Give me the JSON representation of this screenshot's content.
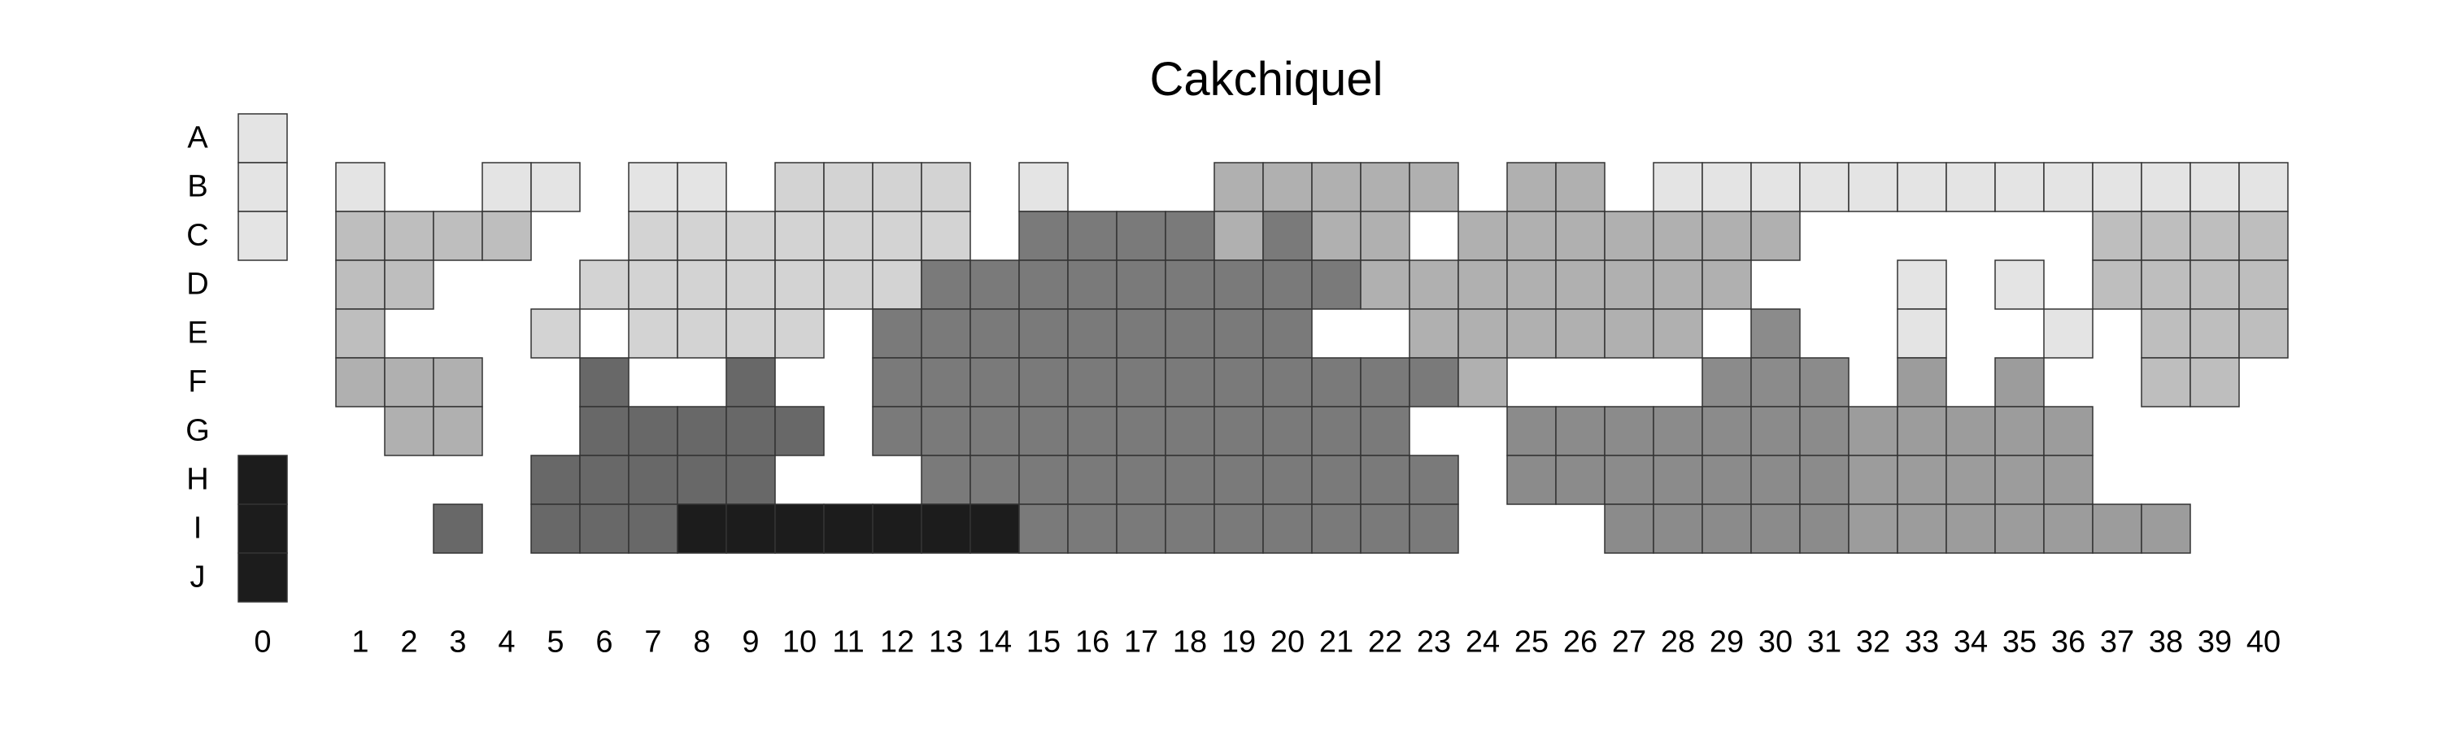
{
  "chart_data": {
    "type": "heatmap",
    "title": "Cakchiquel",
    "rows": [
      "A",
      "B",
      "C",
      "D",
      "E",
      "F",
      "G",
      "H",
      "I",
      "J"
    ],
    "columns": [
      "0",
      "1",
      "2",
      "3",
      "4",
      "5",
      "6",
      "7",
      "8",
      "9",
      "10",
      "11",
      "12",
      "13",
      "14",
      "15",
      "16",
      "17",
      "18",
      "19",
      "20",
      "21",
      "22",
      "23",
      "24",
      "25",
      "26",
      "27",
      "28",
      "29",
      "30",
      "31",
      "32",
      "33",
      "34",
      "35",
      "36",
      "37",
      "38",
      "39",
      "40"
    ],
    "color_scale": "white (low) to black (high), cell value in 0-9",
    "empty_value": 0,
    "grid": [
      [
        1,
        0,
        0,
        0,
        0,
        0,
        0,
        0,
        0,
        0,
        0,
        0,
        0,
        0,
        0,
        0,
        0,
        0,
        0,
        0,
        0,
        0,
        0,
        0,
        0,
        0,
        0,
        0,
        0,
        0,
        0,
        0,
        0,
        0,
        0,
        0,
        0,
        0,
        0,
        0,
        0
      ],
      [
        1,
        1,
        0,
        0,
        1,
        1,
        0,
        1,
        1,
        0,
        2,
        2,
        2,
        2,
        0,
        1,
        0,
        0,
        0,
        4,
        4,
        4,
        4,
        4,
        0,
        4,
        4,
        0,
        1,
        1,
        1,
        1,
        1,
        1,
        1,
        1,
        1,
        1,
        1,
        1,
        1
      ],
      [
        1,
        3,
        3,
        3,
        3,
        0,
        0,
        2,
        2,
        2,
        2,
        2,
        2,
        2,
        0,
        7,
        7,
        7,
        7,
        4,
        7,
        4,
        4,
        0,
        4,
        4,
        4,
        4,
        4,
        4,
        4,
        0,
        0,
        0,
        0,
        0,
        0,
        3,
        3,
        3,
        3
      ],
      [
        0,
        3,
        3,
        0,
        0,
        0,
        2,
        2,
        2,
        2,
        2,
        2,
        2,
        7,
        7,
        7,
        7,
        7,
        7,
        7,
        7,
        7,
        4,
        4,
        4,
        4,
        4,
        4,
        4,
        4,
        0,
        0,
        0,
        1,
        0,
        1,
        0,
        3,
        3,
        3,
        3
      ],
      [
        0,
        3,
        0,
        0,
        0,
        2,
        0,
        2,
        2,
        2,
        2,
        0,
        7,
        7,
        7,
        7,
        7,
        7,
        7,
        7,
        7,
        0,
        0,
        4,
        4,
        4,
        4,
        4,
        4,
        0,
        6,
        0,
        0,
        1,
        0,
        0,
        1,
        0,
        3,
        3,
        3
      ],
      [
        0,
        4,
        4,
        4,
        0,
        0,
        8,
        0,
        0,
        8,
        0,
        0,
        7,
        7,
        7,
        7,
        7,
        7,
        7,
        7,
        7,
        7,
        7,
        7,
        4,
        0,
        0,
        0,
        0,
        6,
        6,
        6,
        0,
        5,
        0,
        5,
        0,
        0,
        3,
        3,
        0
      ],
      [
        0,
        0,
        4,
        4,
        0,
        0,
        8,
        8,
        8,
        8,
        8,
        0,
        7,
        7,
        7,
        7,
        7,
        7,
        7,
        7,
        7,
        7,
        7,
        0,
        0,
        6,
        6,
        6,
        6,
        6,
        6,
        6,
        5,
        5,
        5,
        5,
        5,
        0,
        0,
        0,
        0
      ],
      [
        9,
        0,
        0,
        0,
        0,
        8,
        8,
        8,
        8,
        8,
        0,
        0,
        0,
        7,
        7,
        7,
        7,
        7,
        7,
        7,
        7,
        7,
        7,
        7,
        0,
        6,
        6,
        6,
        6,
        6,
        6,
        6,
        5,
        5,
        5,
        5,
        5,
        0,
        0,
        0,
        0
      ],
      [
        9,
        0,
        0,
        8,
        0,
        8,
        8,
        8,
        9,
        9,
        9,
        9,
        9,
        9,
        9,
        7,
        7,
        7,
        7,
        7,
        7,
        7,
        7,
        7,
        0,
        0,
        0,
        6,
        6,
        6,
        6,
        6,
        5,
        5,
        5,
        5,
        5,
        5,
        5,
        0,
        0
      ],
      [
        9,
        0,
        0,
        0,
        0,
        0,
        0,
        0,
        0,
        0,
        0,
        0,
        0,
        0,
        0,
        0,
        0,
        0,
        0,
        0,
        0,
        0,
        0,
        0,
        0,
        0,
        0,
        0,
        0,
        0,
        0,
        0,
        0,
        0,
        0,
        0,
        0,
        0,
        0,
        0,
        0
      ]
    ],
    "colors": {
      "1": "#e4e4e4",
      "2": "#d3d3d3",
      "3": "#bebebe",
      "4": "#b0b0b0",
      "5": "#9c9c9c",
      "6": "#8b8b8b",
      "7": "#7a7a7a",
      "8": "#686868",
      "9": "#1c1c1c"
    },
    "cell_border": "#333333"
  }
}
